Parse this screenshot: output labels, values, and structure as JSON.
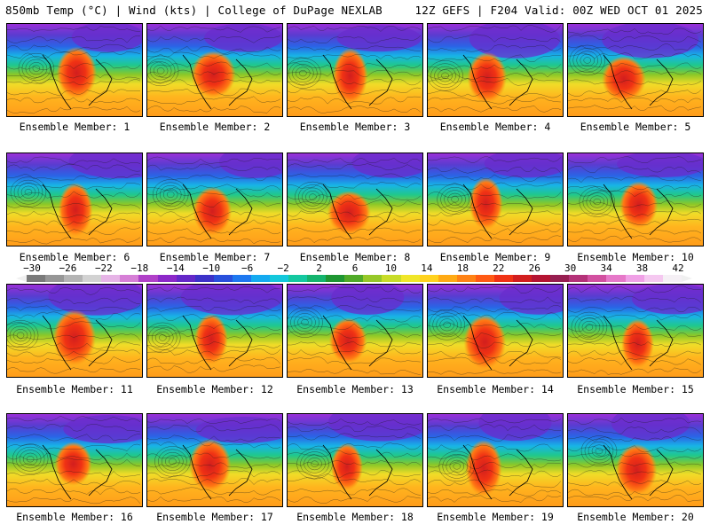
{
  "header": {
    "left_title": "850mb Temp (°C) | Wind (kts) | College of DuPage NEXLAB",
    "right_title": "12Z GEFS | F204 Valid: 00Z WED OCT 01 2025"
  },
  "members": [
    {
      "label": "Ensemble Member: 1"
    },
    {
      "label": "Ensemble Member: 2"
    },
    {
      "label": "Ensemble Member: 3"
    },
    {
      "label": "Ensemble Member: 4"
    },
    {
      "label": "Ensemble Member: 5"
    },
    {
      "label": "Ensemble Member: 6"
    },
    {
      "label": "Ensemble Member: 7"
    },
    {
      "label": "Ensemble Member: 8"
    },
    {
      "label": "Ensemble Member: 9"
    },
    {
      "label": "Ensemble Member: 10"
    },
    {
      "label": "Ensemble Member: 11"
    },
    {
      "label": "Ensemble Member: 12"
    },
    {
      "label": "Ensemble Member: 13"
    },
    {
      "label": "Ensemble Member: 14"
    },
    {
      "label": "Ensemble Member: 15"
    },
    {
      "label": "Ensemble Member: 16"
    },
    {
      "label": "Ensemble Member: 17"
    },
    {
      "label": "Ensemble Member: 18"
    },
    {
      "label": "Ensemble Member: 19"
    },
    {
      "label": "Ensemble Member: 20"
    }
  ],
  "colorbar": {
    "ticks": [
      "−30",
      "−26",
      "−22",
      "−18",
      "−14",
      "−10",
      "−6",
      "−2",
      "2",
      "6",
      "10",
      "14",
      "18",
      "22",
      "26",
      "30",
      "34",
      "38",
      "42"
    ],
    "colors": [
      "#7a7a7a",
      "#969696",
      "#b4b4b4",
      "#d2d2d2",
      "#e6b4e6",
      "#d67fd6",
      "#b040c8",
      "#8c28c8",
      "#6428c8",
      "#3c32c8",
      "#2850dc",
      "#1e78f0",
      "#14aaf0",
      "#14c8dc",
      "#14c8a0",
      "#14b46e",
      "#1e9632",
      "#50aa28",
      "#96c828",
      "#c8dc28",
      "#f0e628",
      "#ffd21e",
      "#ffaa14",
      "#ff8214",
      "#ff5a14",
      "#f03214",
      "#d21e1e",
      "#b41432",
      "#961e50",
      "#b43278",
      "#d250a0",
      "#e678c8",
      "#f0a0e6",
      "#f5c8f0",
      "#f5f0f5"
    ]
  },
  "colors": {
    "background": "#ffffff",
    "text": "#000000"
  }
}
